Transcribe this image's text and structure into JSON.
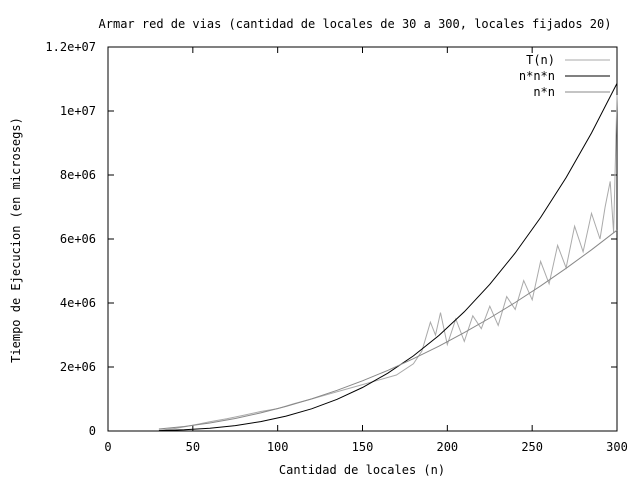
{
  "chart_data": {
    "type": "line",
    "title": "Armar red de vias (cantidad de locales de 30 a 300, locales fijados 20)",
    "xlabel": "Cantidad de locales (n)",
    "ylabel": "Tiempo de Ejecucion (en microsegs)",
    "xlim": [
      0,
      300
    ],
    "ylim": [
      0,
      12000000
    ],
    "xticks": [
      0,
      50,
      100,
      150,
      200,
      250,
      300
    ],
    "yticks": [
      0,
      2000000,
      4000000,
      6000000,
      8000000,
      10000000,
      12000000
    ],
    "xtick_labels": [
      "0",
      "50",
      "100",
      "150",
      "200",
      "250",
      "300"
    ],
    "ytick_labels": [
      "0",
      "2e+06",
      "4e+06",
      "6e+06",
      "8e+06",
      "1e+07",
      "1.2e+07"
    ],
    "grid": false,
    "legend_position": "top-right",
    "series": [
      {
        "name": "T(n)",
        "color": "#aaaaaa",
        "x": [
          30,
          40,
          50,
          60,
          70,
          80,
          90,
          100,
          110,
          120,
          130,
          140,
          150,
          160,
          170,
          180,
          185,
          190,
          193,
          196,
          200,
          205,
          210,
          215,
          220,
          225,
          230,
          235,
          240,
          245,
          250,
          255,
          260,
          265,
          270,
          275,
          280,
          285,
          290,
          293,
          296,
          298,
          300
        ],
        "y": [
          20000,
          80000,
          180000,
          290000,
          380000,
          490000,
          610000,
          700000,
          860000,
          1000000,
          1150000,
          1300000,
          1450000,
          1600000,
          1750000,
          2100000,
          2500000,
          3400000,
          3000000,
          3700000,
          2700000,
          3500000,
          2800000,
          3600000,
          3200000,
          3900000,
          3300000,
          4200000,
          3800000,
          4700000,
          4100000,
          5300000,
          4600000,
          5800000,
          5100000,
          6400000,
          5600000,
          6800000,
          6000000,
          7000000,
          7800000,
          6200000,
          10500000
        ]
      },
      {
        "name": "n*n*n",
        "color": "#000000",
        "x": [
          30,
          45,
          60,
          75,
          90,
          105,
          120,
          135,
          150,
          165,
          180,
          195,
          210,
          225,
          240,
          255,
          270,
          285,
          300
        ],
        "y": [
          11000,
          37000,
          87000,
          170000,
          293000,
          466000,
          695000,
          990000,
          1358000,
          1808000,
          2347000,
          2983000,
          3726000,
          4583000,
          5562000,
          6671000,
          7919000,
          9314000,
          10864000
        ]
      },
      {
        "name": "n*n",
        "color": "#888888",
        "x": [
          30,
          45,
          60,
          75,
          90,
          105,
          120,
          135,
          150,
          165,
          180,
          195,
          210,
          225,
          240,
          255,
          270,
          285,
          300
        ],
        "y": [
          63000,
          141000,
          251000,
          392000,
          565000,
          769000,
          1004000,
          1271000,
          1569000,
          1898000,
          2259000,
          2651000,
          3075000,
          3530000,
          4016000,
          4534000,
          5083000,
          5663000,
          6275000
        ]
      }
    ]
  }
}
